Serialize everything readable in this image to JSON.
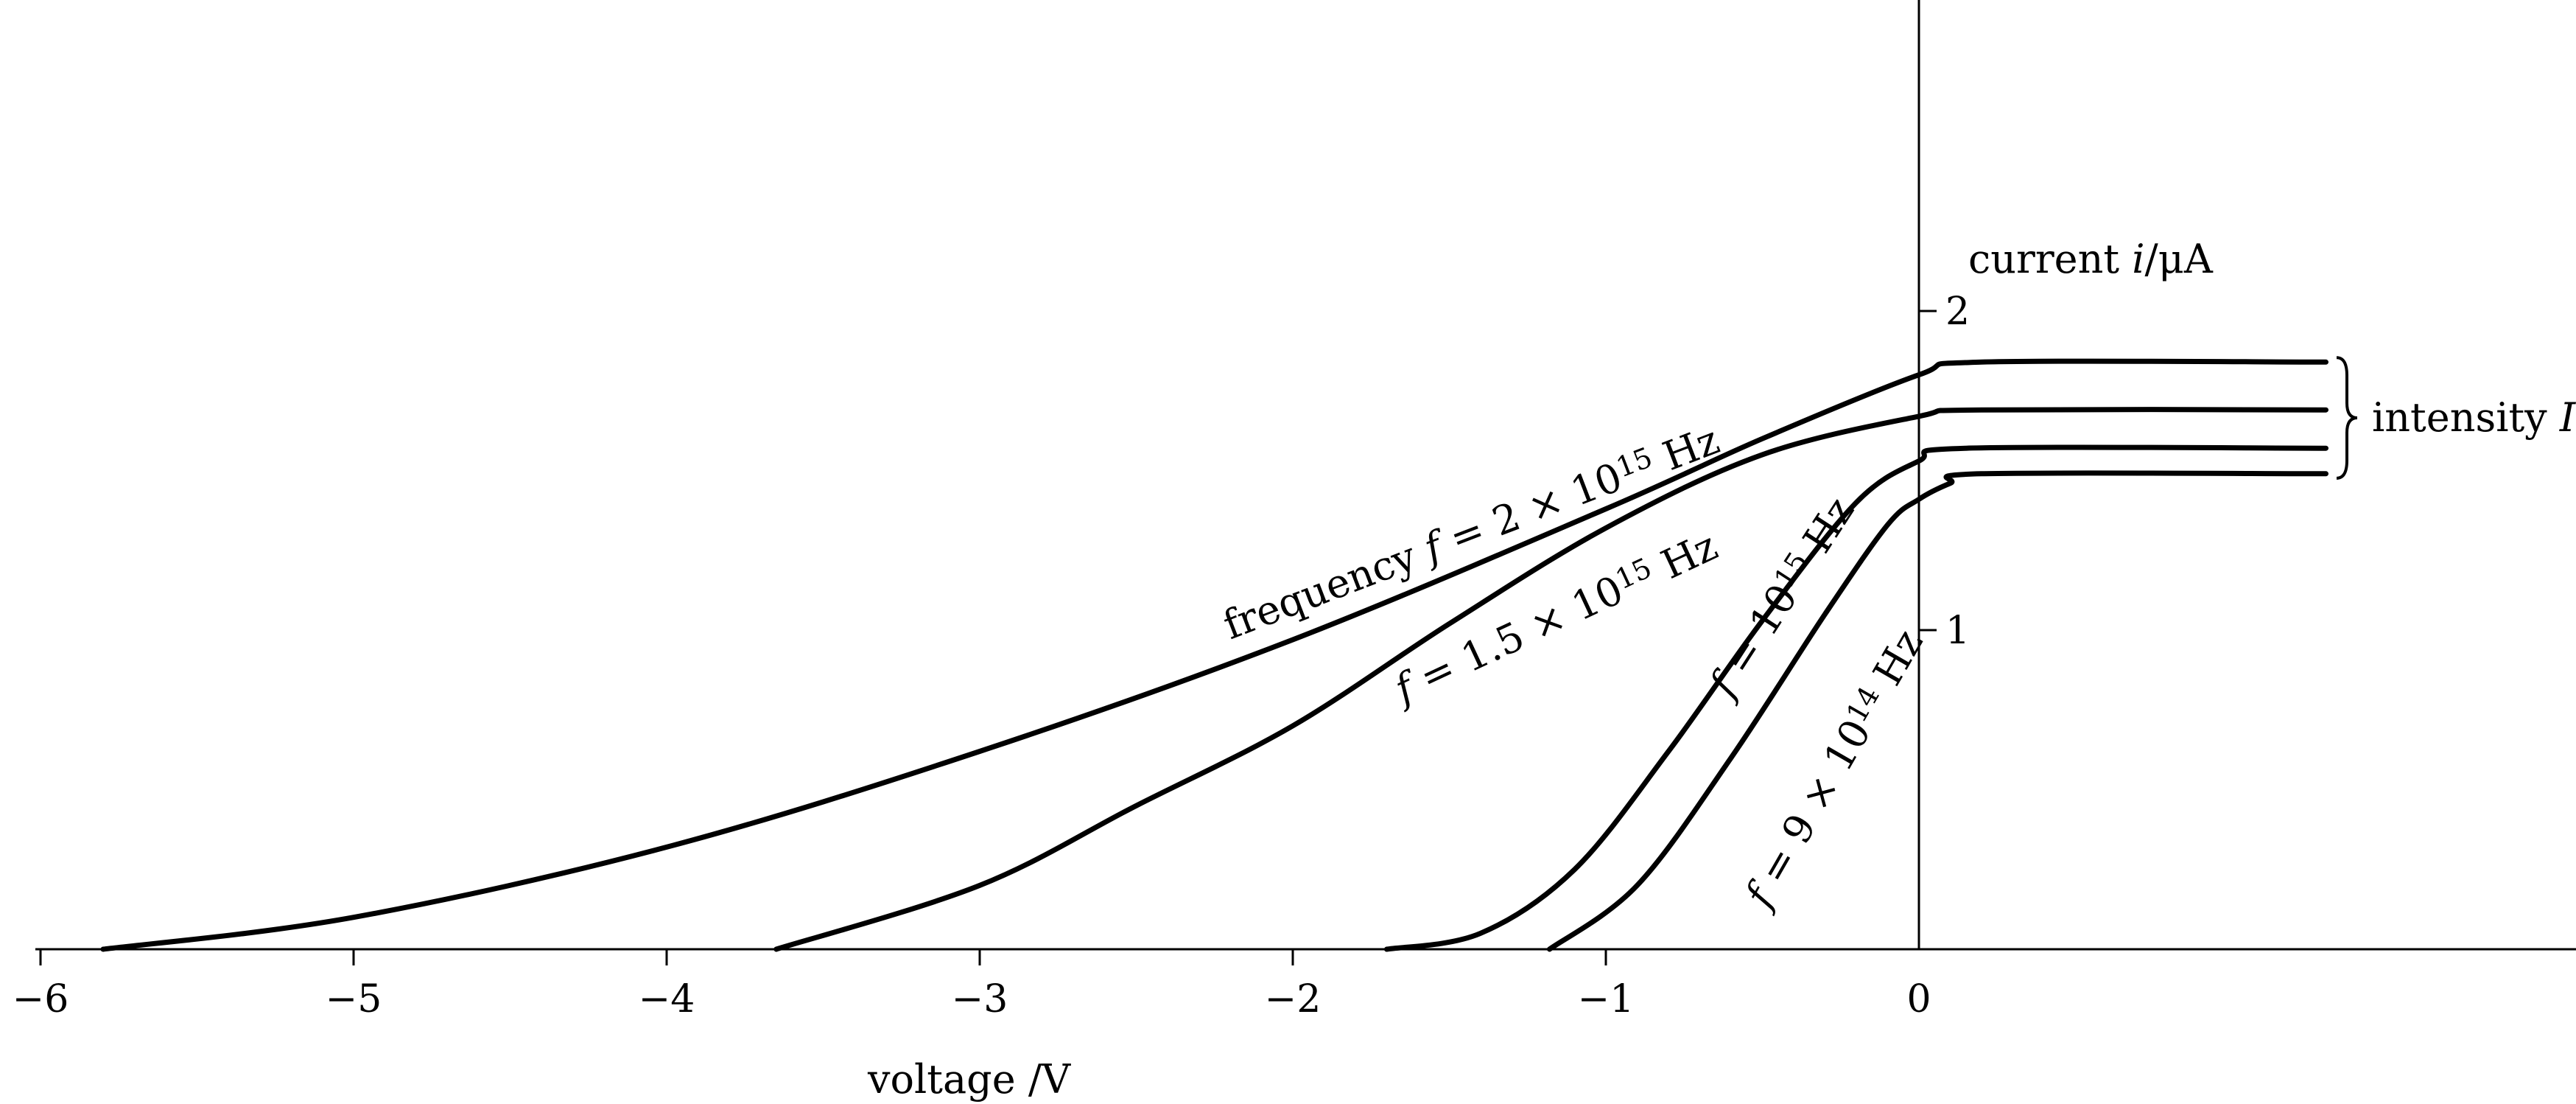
{
  "chart_data": {
    "type": "line",
    "title": "",
    "xlabel": "voltage /V",
    "ylabel": "current i/μA",
    "xlim": [
      -6,
      2.1
    ],
    "ylim": [
      0,
      3
    ],
    "x_ticks": [
      -6,
      -5,
      -4,
      -3,
      -2,
      -1,
      0
    ],
    "x_tick_labels": [
      "−6",
      "−5",
      "−4",
      "−3",
      "−2",
      "−1",
      "0"
    ],
    "y_ticks": [
      1,
      2
    ],
    "y_tick_labels": [
      "1",
      "2"
    ],
    "grid": false,
    "series": [
      {
        "name": "frequency f = 2 × 10^15 Hz",
        "label_parts": [
          "frequency ",
          "f",
          " = 2 × 10",
          "15",
          " Hz"
        ],
        "x": [
          -5.8,
          -5,
          -4,
          -3,
          -2,
          -1,
          -0.5,
          0,
          0.2,
          1.3
        ],
        "y": [
          0,
          0.1,
          0.32,
          0.62,
          0.97,
          1.38,
          1.6,
          1.8,
          1.84,
          1.84
        ]
      },
      {
        "name": "f = 1.5 × 10^15 Hz",
        "label_parts": [
          "f",
          " = 1.5 × 10",
          "15",
          " Hz"
        ],
        "x": [
          -3.65,
          -3,
          -2.5,
          -2,
          -1.5,
          -1,
          -0.5,
          0,
          0.2,
          1.3
        ],
        "y": [
          0,
          0.2,
          0.45,
          0.7,
          1.02,
          1.32,
          1.55,
          1.67,
          1.69,
          1.69
        ]
      },
      {
        "name": "f = 10^15 Hz",
        "label_parts": [
          "f",
          " = 10",
          "15",
          " Hz"
        ],
        "x": [
          -1.7,
          -1.4,
          -1.1,
          -0.8,
          -0.5,
          -0.2,
          0,
          0.15,
          1.3
        ],
        "y": [
          0,
          0.05,
          0.25,
          0.62,
          1.03,
          1.4,
          1.53,
          1.57,
          1.57
        ]
      },
      {
        "name": "f = 9 × 10^14 Hz",
        "label_parts": [
          "f",
          " = 9 × 10",
          "14",
          " Hz"
        ],
        "x": [
          -1.18,
          -0.9,
          -0.6,
          -0.3,
          -0.1,
          0,
          0.1,
          0.2,
          1.3
        ],
        "y": [
          0,
          0.2,
          0.6,
          1.05,
          1.33,
          1.41,
          1.46,
          1.49,
          1.49
        ]
      }
    ],
    "annotations": [
      {
        "text_parts": [
          "intensity ",
          "I"
        ]
      }
    ]
  }
}
